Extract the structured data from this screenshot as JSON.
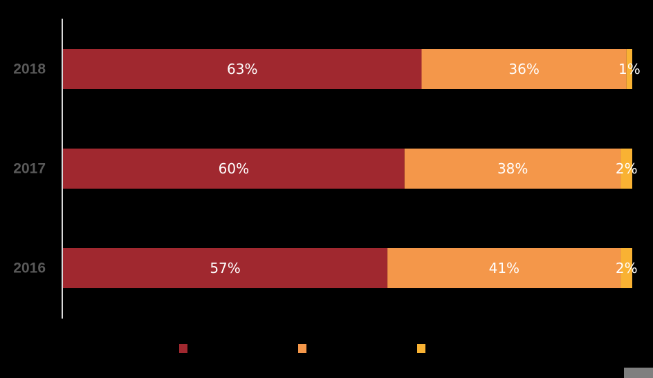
{
  "chart_data": {
    "type": "bar",
    "orientation": "horizontal",
    "stacked": true,
    "percent": true,
    "categories": [
      "2018",
      "2017",
      "2016"
    ],
    "series": [
      {
        "values": [
          63,
          60,
          57
        ],
        "color": "#a0282f"
      },
      {
        "values": [
          36,
          38,
          41
        ],
        "color": "#f4974a"
      },
      {
        "values": [
          1,
          2,
          2
        ],
        "color": "#f9b233"
      }
    ],
    "xlim": [
      0,
      100
    ],
    "grid": false,
    "legend": "bottom",
    "data_labels": true,
    "label_suffix": "%"
  }
}
